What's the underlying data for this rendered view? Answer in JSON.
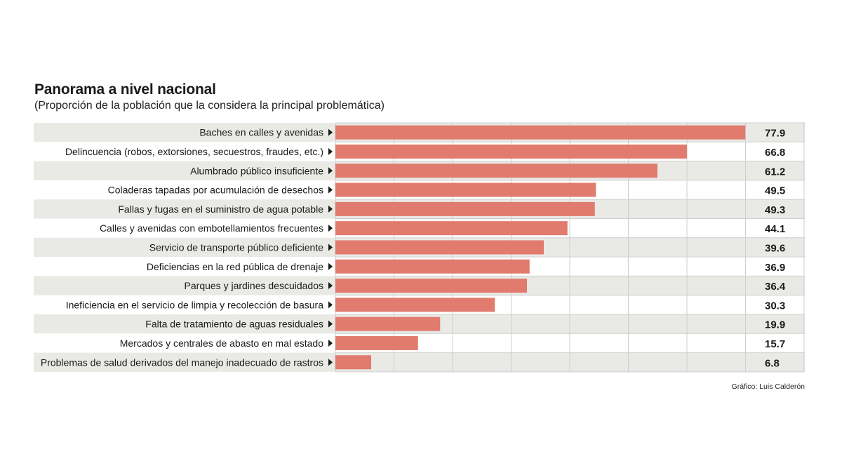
{
  "chart_data": {
    "type": "bar",
    "orientation": "horizontal",
    "title": "Panorama a nivel nacional",
    "subtitle": "(Proporción de la población que la considera la principal problemática)",
    "categories": [
      "Baches en calles y avenidas",
      "Delincuencia (robos, extorsiones, secuestros, fraudes, etc.)",
      "Alumbrado público insuficiente",
      "Coladeras tapadas por acumulación de desechos",
      "Fallas y fugas en el suministro de agua potable",
      "Calles y avenidas con embotellamientos frecuentes",
      "Servicio de transporte público deficiente",
      "Deficiencias en la red pública de drenaje",
      "Parques y jardines descuidados",
      "Ineficiencia en el servicio de limpia y recolección de basura",
      "Falta de tratamiento de aguas residuales",
      "Mercados y centrales de abasto en mal estado",
      "Problemas de salud derivados del manejo inadecuado de rastros"
    ],
    "values": [
      77.9,
      66.8,
      61.2,
      49.5,
      49.3,
      44.1,
      39.6,
      36.9,
      36.4,
      30.3,
      19.9,
      15.7,
      6.8
    ],
    "value_labels": [
      "77.9",
      "66.8",
      "61.2",
      "49.5",
      "49.3",
      "44.1",
      "39.6",
      "36.9",
      "36.4",
      "30.3",
      "19.9",
      "15.7",
      "6.8"
    ],
    "xlim": [
      0,
      80
    ],
    "grid": true,
    "credit": "Gráfico: Luis Calderón"
  },
  "colors": {
    "bar": "#e07b6d",
    "row_shade": "#e9e9e6",
    "grid": "#cfcfcf",
    "triangle": "#1a1a1a"
  }
}
